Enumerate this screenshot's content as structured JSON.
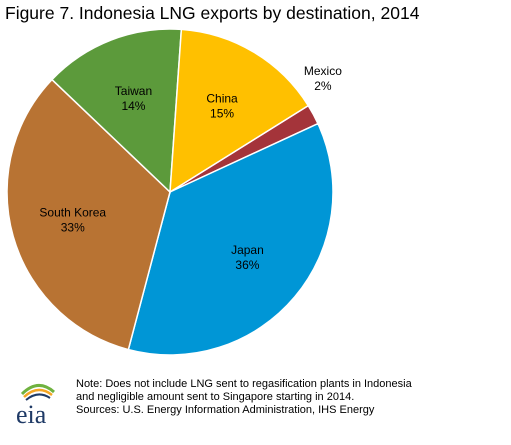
{
  "title": "Figure 7. Indonesia LNG exports by destination, 2014",
  "chart_data": {
    "type": "pie",
    "title": "Figure 7. Indonesia LNG exports by destination, 2014",
    "start_angle_deg": 0,
    "direction": "clockwise",
    "slices": [
      {
        "label": "Mexico",
        "value": 2,
        "value_label": "2%",
        "color": "#a4343a"
      },
      {
        "label": "Japan",
        "value": 36,
        "value_label": "36%",
        "color": "#0096d6"
      },
      {
        "label": "South Korea",
        "value": 33,
        "value_label": "33%",
        "color": "#b87333"
      },
      {
        "label": "Taiwan",
        "value": 14,
        "value_label": "14%",
        "color": "#5c9a3b"
      },
      {
        "label": "China",
        "value": 15,
        "value_label": "15%",
        "color": "#ffc000"
      }
    ]
  },
  "footnote": {
    "note_line1": "Note: Does not include LNG sent to regasification plants in Indonesia",
    "note_line2": "and negligible amount sent to Singapore starting in 2014.",
    "sources": "Sources: U.S. Energy Information Administration, IHS Energy"
  },
  "logo": {
    "text": "eia",
    "colors": {
      "blue": "#1f3a66",
      "green": "#6fb23f",
      "orange": "#f5a623"
    }
  }
}
